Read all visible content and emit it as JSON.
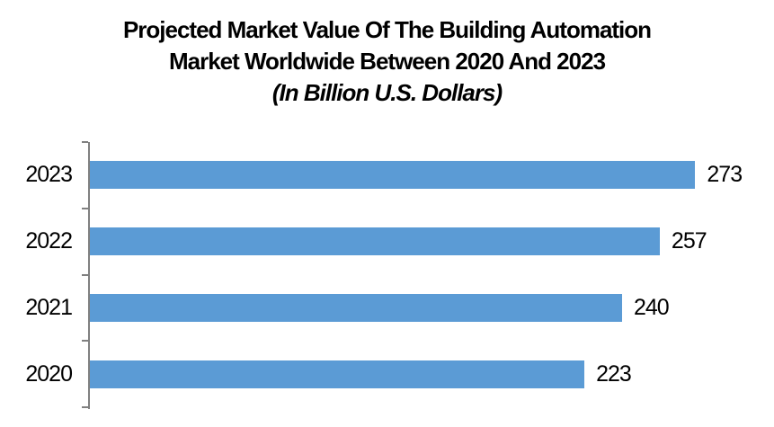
{
  "chart_data": {
    "type": "bar",
    "orientation": "horizontal",
    "title": "Projected Market Value Of The Building Automation Market Worldwide Between 2020 And 2023",
    "title_lines": [
      "Projected Market Value Of The Building Automation",
      "Market Worldwide Between 2020 And 2023"
    ],
    "subtitle": "(In Billion U.S. Dollars)",
    "categories": [
      "2023",
      "2022",
      "2021",
      "2020"
    ],
    "values": [
      273,
      257,
      240,
      223
    ],
    "data_labels": [
      "273",
      "257",
      "240",
      "223"
    ],
    "xlabel": "",
    "ylabel": "",
    "xlim": [
      0,
      300
    ],
    "grid": false,
    "legend": "none",
    "colors": {
      "bar": "#5B9BD5",
      "axis": "#808080",
      "text": "#000000",
      "background": "#FFFFFF"
    }
  }
}
